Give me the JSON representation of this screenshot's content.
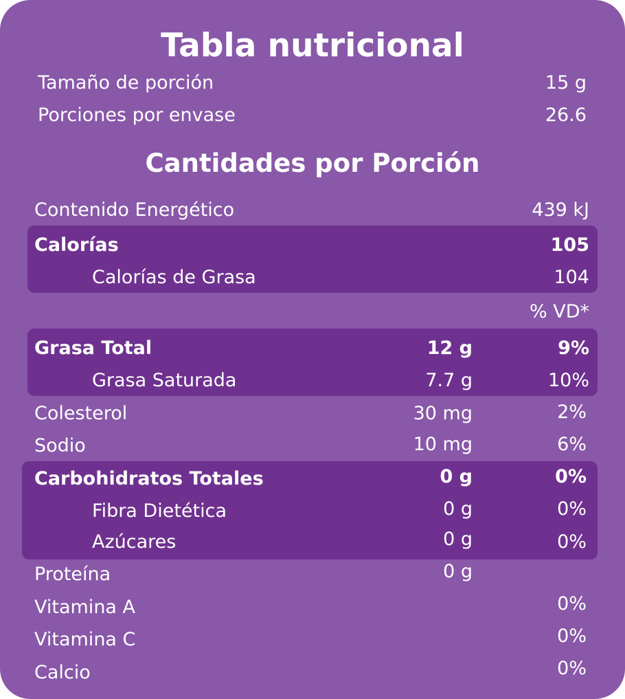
{
  "title": "Tabla nutricional",
  "serving": {
    "size_label": "Tamaño de porción",
    "size_value": "15 g",
    "per_container_label": "Porciones por envase",
    "per_container_value": "26.6"
  },
  "subtitle": "Cantidades por Porción",
  "energy": {
    "label": "Contenido Energético",
    "value": "439 kJ"
  },
  "calories": {
    "label": "Calorías",
    "value": "105"
  },
  "calories_fat": {
    "label": "Calorías de Grasa",
    "value": "104"
  },
  "dv_header": "% VD*",
  "nutrients": {
    "fat_total": {
      "label": "Grasa Total",
      "amount": "12 g",
      "dv": "9%"
    },
    "fat_saturated": {
      "label": "Grasa Saturada",
      "amount": "7.7 g",
      "dv": "10%"
    },
    "cholesterol": {
      "label": "Colesterol",
      "amount": "30 mg",
      "dv": "2%"
    },
    "sodium": {
      "label": "Sodio",
      "amount": "10 mg",
      "dv": "6%"
    },
    "carbs_total": {
      "label": "Carbohidratos Totales",
      "amount": "0 g",
      "dv": "0%"
    },
    "fiber": {
      "label": "Fibra Dietética",
      "amount": "0 g",
      "dv": "0%"
    },
    "sugars": {
      "label": "Azúcares",
      "amount": "0 g",
      "dv": "0%"
    },
    "protein": {
      "label": "Proteína",
      "amount": "0 g"
    },
    "vitamin_a": {
      "label": "Vitamina A",
      "dv": "0%"
    },
    "vitamin_c": {
      "label": "Vitamina C",
      "dv": "0%"
    },
    "calcium": {
      "label": "Calcio",
      "dv": "0%"
    }
  },
  "colors": {
    "background": "#8958a8",
    "highlight": "#6f318f",
    "text": "#ffffff"
  }
}
